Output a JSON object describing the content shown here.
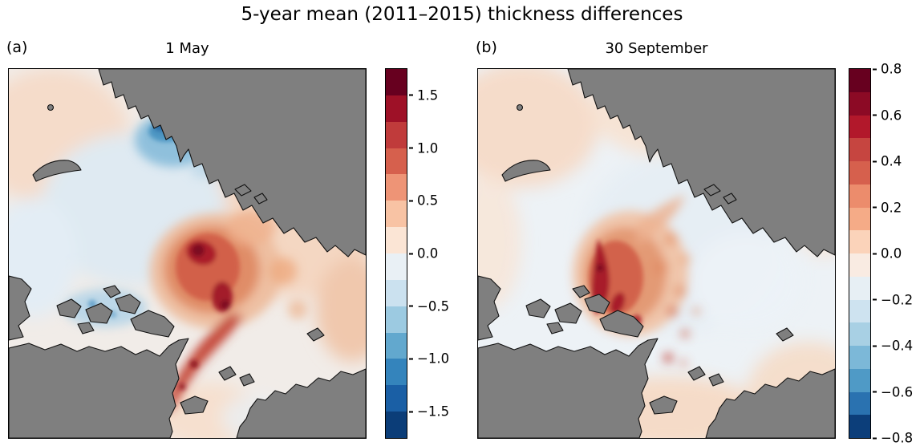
{
  "figure": {
    "title": "5-year mean (2011–2015) thickness differences",
    "land_color": "#7f7f7f",
    "coastline_color": "#111111",
    "panels": [
      {
        "label": "(a)",
        "title": "1 May",
        "colorbar": {
          "range": [
            -1.75,
            1.75
          ],
          "tick_values": [
            1.5,
            1.0,
            0.5,
            0.0,
            -0.5,
            -1.0,
            -1.5
          ],
          "tick_labels": [
            "1.5",
            "1.0",
            "0.5",
            "0.0",
            "−0.5",
            "−1.0",
            "−1.5"
          ],
          "colors_top_to_bottom": [
            "#67001f",
            "#9e1127",
            "#c03b3b",
            "#d6604d",
            "#ee9476",
            "#f8c3a4",
            "#fbe5d5",
            "#e9f0f5",
            "#cbe1ef",
            "#9ccae1",
            "#62a8ce",
            "#3484bc",
            "#1a5fa5",
            "#0b3d78"
          ]
        }
      },
      {
        "label": "(b)",
        "title": "30 September",
        "colorbar": {
          "range": [
            -0.8,
            0.8
          ],
          "tick_values": [
            0.8,
            0.6,
            0.4,
            0.2,
            0.0,
            -0.2,
            -0.4,
            -0.6,
            -0.8
          ],
          "tick_labels": [
            "0.8",
            "0.6",
            "0.4",
            "0.2",
            "0.0",
            "−0.2",
            "−0.4",
            "−0.6",
            "−0.8"
          ],
          "colors_top_to_bottom": [
            "#67001f",
            "#8c0a25",
            "#b2182b",
            "#c64540",
            "#d6604d",
            "#ec8c6c",
            "#f5ab87",
            "#fbd3ba",
            "#f9ebe2",
            "#e7eff4",
            "#cee3f0",
            "#a8d0e4",
            "#7cb8d8",
            "#4f9ac6",
            "#2a72b0",
            "#0c3e7a"
          ]
        }
      }
    ]
  },
  "chart_data": [
    {
      "type": "heatmap",
      "subtype": "polar_stereographic_map",
      "panel": "(a)",
      "title": "1 May",
      "figure_title": "5-year mean (2011–2015) thickness differences",
      "colormap": "RdBu_r diverging (red = positive, blue = negative)",
      "colorbar_range": [
        -1.75,
        1.75
      ],
      "colorbar_ticks": [
        1.5,
        1.0,
        0.5,
        0.0,
        -0.5,
        -1.0,
        -1.5
      ],
      "n_color_levels": 14,
      "annotations": [
        "strong positive differences up to ~1.5 north of Greenland and the Canadian Arctic Archipelago, with a tail of ~0.5–1.0 along the east Greenland coast",
        "negative differences down to ~−1.0 in a patch along the central Siberian shelf coast",
        "weak positive differences (~0.1–0.4) over most peripheral seas (Barents, Kara, Chukchi sectors)",
        "weak negative differences over parts of the central and western Arctic Ocean",
        "gray shading = land, black lines = coastlines"
      ]
    },
    {
      "type": "heatmap",
      "subtype": "polar_stereographic_map",
      "panel": "(b)",
      "title": "30 September",
      "figure_title": "5-year mean (2011–2015) thickness differences",
      "colormap": "RdBu_r diverging (red = positive, blue = negative)",
      "colorbar_range": [
        -0.8,
        0.8
      ],
      "colorbar_ticks": [
        0.8,
        0.6,
        0.4,
        0.2,
        0.0,
        -0.2,
        -0.4,
        -0.6,
        -0.8
      ],
      "n_color_levels": 16,
      "annotations": [
        "positive differences up to ~0.6–0.8 concentrated north of the Canadian Arctic Archipelago and Greenland",
        "scattered weak positive filaments extending toward the central Arctic",
        "near-zero to weakly negative differences over the remaining central Arctic Ocean",
        "weak positive differences (~0.1–0.2) around the map periphery",
        "gray shading = land, black lines = coastlines"
      ]
    }
  ]
}
